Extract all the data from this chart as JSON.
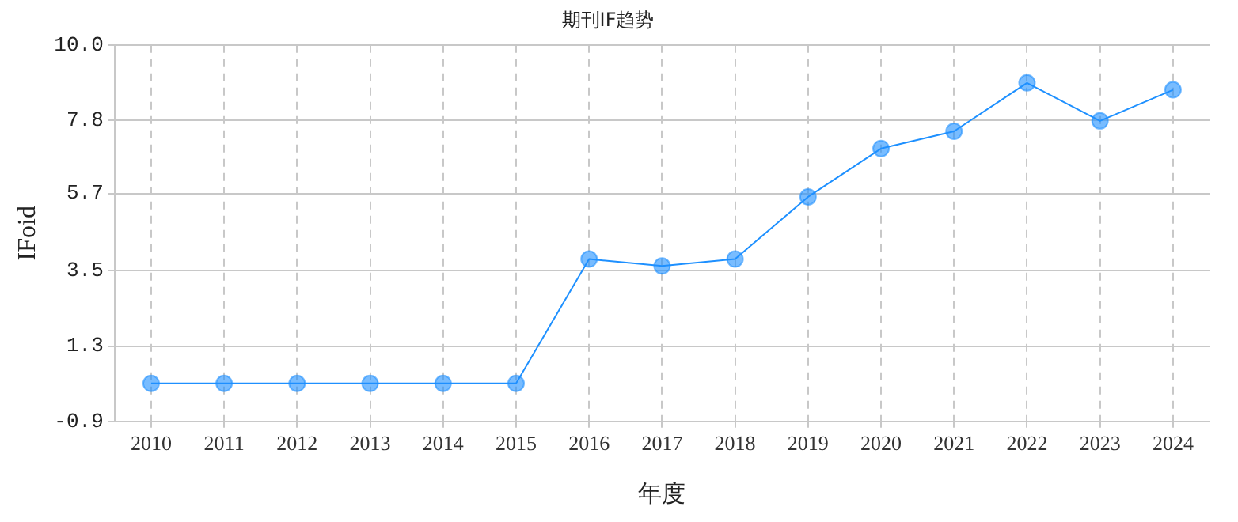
{
  "chart_data": {
    "type": "line",
    "title": "期刊IF趋势",
    "xlabel": "年度",
    "ylabel": "IFoid",
    "categories": [
      "2010",
      "2011",
      "2012",
      "2013",
      "2014",
      "2015",
      "2016",
      "2017",
      "2018",
      "2019",
      "2020",
      "2021",
      "2022",
      "2023",
      "2024"
    ],
    "series": [
      {
        "color": "#1e90ff",
        "values": [
          0.2,
          0.2,
          0.2,
          0.2,
          0.2,
          0.2,
          3.8,
          3.6,
          3.8,
          5.6,
          7.0,
          7.5,
          8.9,
          7.8,
          8.7
        ]
      }
    ],
    "ylim": [
      -0.9,
      10
    ],
    "yticks": [
      -0.9,
      {
        "value": 1.28,
        "label": "1.3"
      },
      {
        "value": 3.46,
        "label": "3.5"
      },
      {
        "value": 5.7,
        "label": "5.7"
      },
      {
        "value": 7.82,
        "label": "7.8"
      },
      {
        "value": 10,
        "label": "10.0"
      }
    ],
    "grid": true,
    "legend": false,
    "marker": "circle",
    "line_style": "solid"
  }
}
